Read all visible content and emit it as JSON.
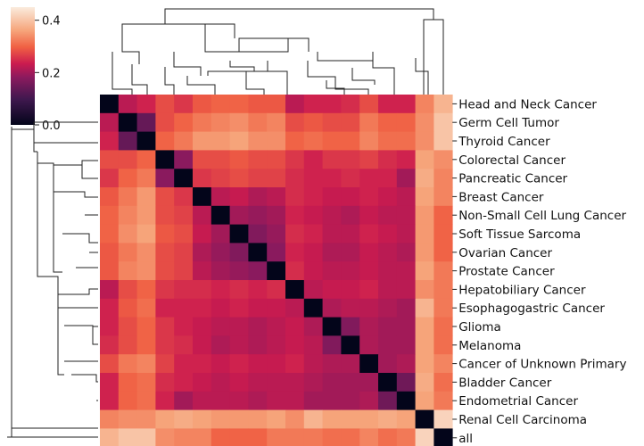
{
  "chart_data": {
    "type": "heatmap",
    "title": "",
    "labels": [
      "Head and Neck Cancer",
      "Germ Cell Tumor",
      "Thyroid Cancer",
      "Colorectal Cancer",
      "Pancreatic Cancer",
      "Breast Cancer",
      "Non-Small Cell Lung Cancer",
      "Soft Tissue Sarcoma",
      "Ovarian Cancer",
      "Prostate Cancer",
      "Hepatobiliary Cancer",
      "Esophagogastric Cancer",
      "Glioma",
      "Melanoma",
      "Cancer of Unknown Primary",
      "Bladder Cancer",
      "Endometrial Cancer",
      "Renal Cell Carcinoma",
      "all"
    ],
    "colorbar": {
      "range": [
        0.0,
        0.45
      ],
      "ticks": [
        {
          "value": 0.0,
          "label": "0.0"
        },
        {
          "value": 0.2,
          "label": "0.2"
        },
        {
          "value": 0.4,
          "label": "0.4"
        }
      ],
      "colormap": "rocket"
    },
    "matrix": [
      [
        0.0,
        0.22,
        0.24,
        0.28,
        0.26,
        0.29,
        0.3,
        0.3,
        0.29,
        0.29,
        0.22,
        0.24,
        0.24,
        0.25,
        0.28,
        0.24,
        0.24,
        0.33,
        0.38
      ],
      [
        0.22,
        0.0,
        0.14,
        0.28,
        0.3,
        0.32,
        0.33,
        0.34,
        0.32,
        0.33,
        0.28,
        0.29,
        0.28,
        0.28,
        0.32,
        0.3,
        0.3,
        0.34,
        0.4
      ],
      [
        0.24,
        0.14,
        0.0,
        0.3,
        0.32,
        0.35,
        0.35,
        0.36,
        0.34,
        0.34,
        0.3,
        0.31,
        0.3,
        0.3,
        0.33,
        0.31,
        0.31,
        0.34,
        0.4
      ],
      [
        0.28,
        0.28,
        0.3,
        0.0,
        0.18,
        0.28,
        0.28,
        0.29,
        0.28,
        0.28,
        0.26,
        0.24,
        0.26,
        0.26,
        0.27,
        0.25,
        0.24,
        0.36,
        0.34
      ],
      [
        0.26,
        0.3,
        0.32,
        0.18,
        0.0,
        0.26,
        0.27,
        0.28,
        0.27,
        0.27,
        0.25,
        0.24,
        0.24,
        0.25,
        0.24,
        0.24,
        0.2,
        0.37,
        0.33
      ],
      [
        0.29,
        0.32,
        0.35,
        0.28,
        0.26,
        0.0,
        0.22,
        0.23,
        0.21,
        0.22,
        0.25,
        0.24,
        0.23,
        0.23,
        0.24,
        0.23,
        0.22,
        0.36,
        0.33
      ],
      [
        0.3,
        0.33,
        0.35,
        0.28,
        0.27,
        0.22,
        0.0,
        0.2,
        0.19,
        0.2,
        0.24,
        0.23,
        0.22,
        0.21,
        0.23,
        0.22,
        0.22,
        0.35,
        0.3
      ],
      [
        0.3,
        0.34,
        0.36,
        0.29,
        0.28,
        0.23,
        0.2,
        0.0,
        0.17,
        0.19,
        0.25,
        0.24,
        0.22,
        0.22,
        0.24,
        0.23,
        0.22,
        0.35,
        0.3
      ],
      [
        0.29,
        0.32,
        0.34,
        0.28,
        0.27,
        0.21,
        0.19,
        0.17,
        0.0,
        0.18,
        0.24,
        0.23,
        0.21,
        0.21,
        0.23,
        0.22,
        0.21,
        0.35,
        0.3
      ],
      [
        0.29,
        0.33,
        0.34,
        0.28,
        0.27,
        0.22,
        0.2,
        0.19,
        0.18,
        0.0,
        0.25,
        0.23,
        0.22,
        0.22,
        0.23,
        0.22,
        0.22,
        0.36,
        0.32
      ],
      [
        0.22,
        0.28,
        0.3,
        0.26,
        0.25,
        0.25,
        0.24,
        0.25,
        0.24,
        0.25,
        0.0,
        0.22,
        0.23,
        0.23,
        0.24,
        0.22,
        0.22,
        0.34,
        0.32
      ],
      [
        0.24,
        0.29,
        0.31,
        0.24,
        0.24,
        0.24,
        0.23,
        0.24,
        0.23,
        0.23,
        0.22,
        0.0,
        0.21,
        0.22,
        0.22,
        0.21,
        0.2,
        0.38,
        0.32
      ],
      [
        0.24,
        0.28,
        0.3,
        0.26,
        0.24,
        0.23,
        0.22,
        0.22,
        0.21,
        0.22,
        0.23,
        0.21,
        0.0,
        0.17,
        0.21,
        0.2,
        0.2,
        0.36,
        0.31
      ],
      [
        0.25,
        0.28,
        0.3,
        0.26,
        0.25,
        0.23,
        0.21,
        0.22,
        0.21,
        0.22,
        0.23,
        0.22,
        0.17,
        0.0,
        0.21,
        0.2,
        0.2,
        0.36,
        0.31
      ],
      [
        0.28,
        0.32,
        0.33,
        0.27,
        0.24,
        0.24,
        0.23,
        0.24,
        0.23,
        0.23,
        0.24,
        0.22,
        0.21,
        0.21,
        0.0,
        0.2,
        0.21,
        0.36,
        0.33
      ],
      [
        0.24,
        0.3,
        0.31,
        0.25,
        0.24,
        0.23,
        0.22,
        0.23,
        0.22,
        0.22,
        0.22,
        0.21,
        0.2,
        0.2,
        0.2,
        0.0,
        0.15,
        0.37,
        0.31
      ],
      [
        0.24,
        0.3,
        0.31,
        0.24,
        0.2,
        0.22,
        0.22,
        0.22,
        0.21,
        0.22,
        0.22,
        0.2,
        0.2,
        0.2,
        0.21,
        0.15,
        0.0,
        0.36,
        0.32
      ],
      [
        0.33,
        0.34,
        0.34,
        0.36,
        0.37,
        0.36,
        0.35,
        0.35,
        0.35,
        0.36,
        0.34,
        0.38,
        0.36,
        0.36,
        0.36,
        0.37,
        0.36,
        0.0,
        0.42
      ],
      [
        0.38,
        0.4,
        0.4,
        0.34,
        0.33,
        0.33,
        0.3,
        0.3,
        0.3,
        0.32,
        0.32,
        0.32,
        0.31,
        0.31,
        0.33,
        0.31,
        0.32,
        0.42,
        0.0
      ]
    ]
  }
}
